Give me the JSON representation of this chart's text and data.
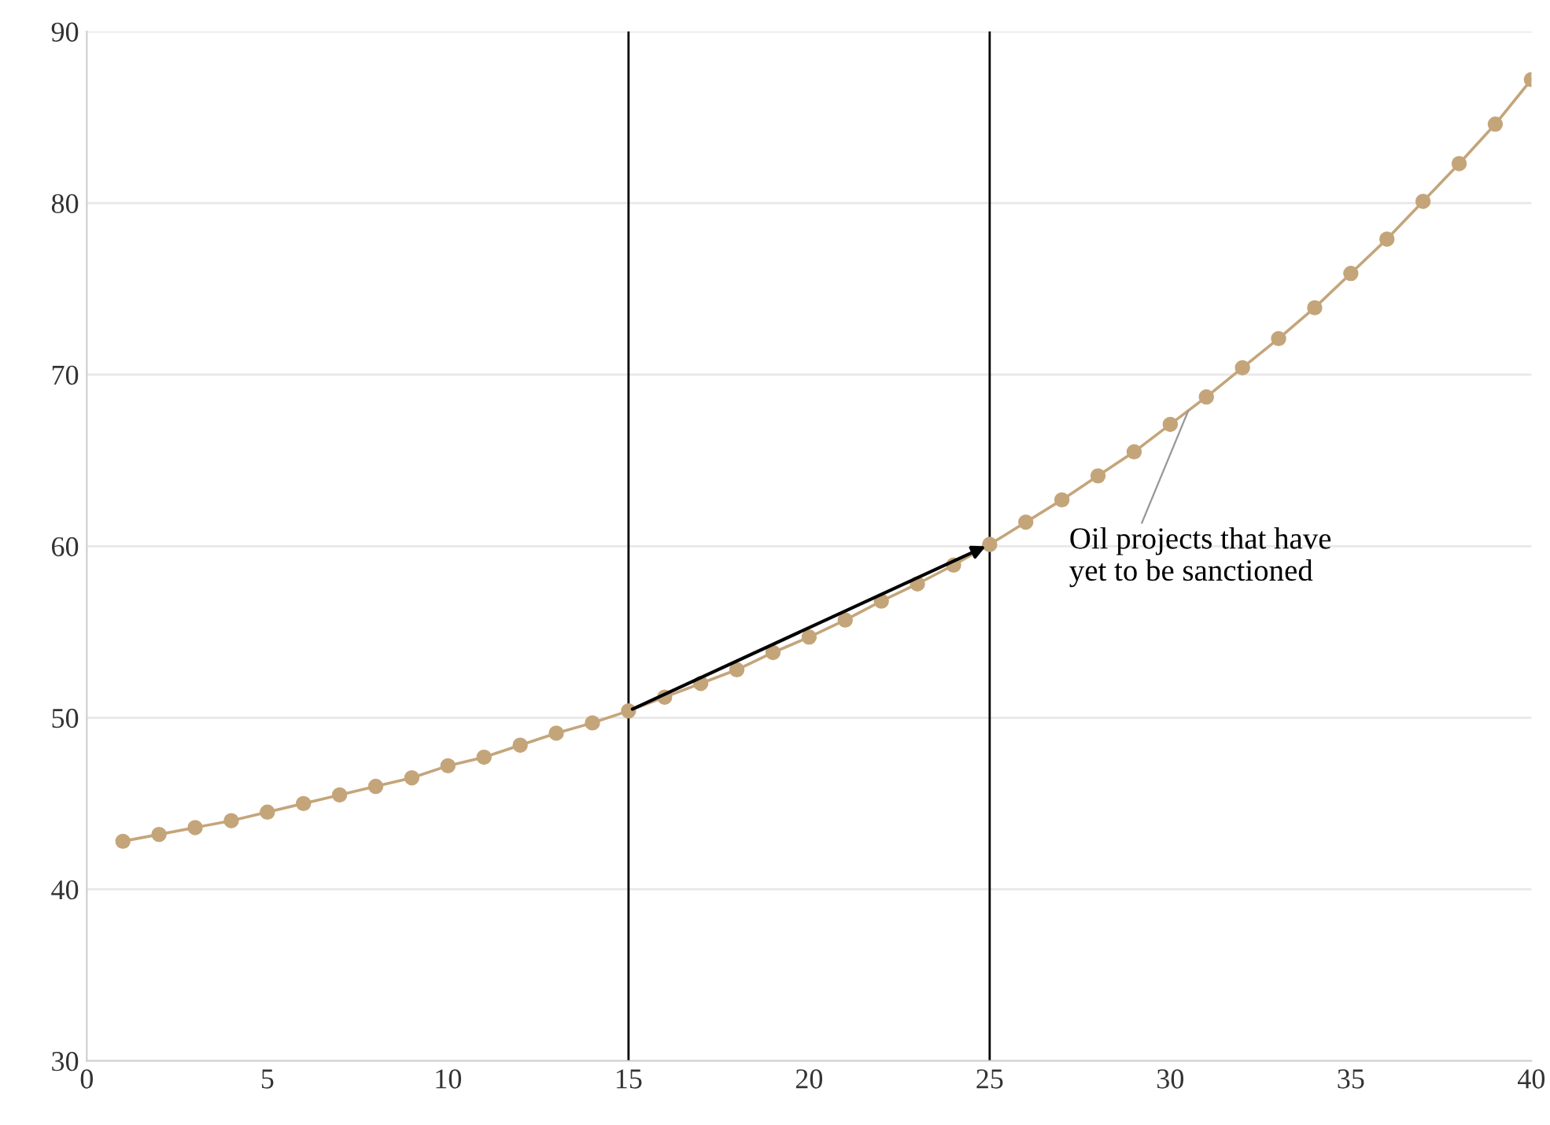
{
  "chart_data": {
    "type": "line",
    "x": [
      1,
      2,
      3,
      4,
      5,
      6,
      7,
      8,
      9,
      10,
      11,
      12,
      13,
      14,
      15,
      16,
      17,
      18,
      19,
      20,
      21,
      22,
      23,
      24,
      25,
      26,
      27,
      28,
      29,
      30,
      31,
      32,
      33,
      34,
      35,
      36,
      37,
      38,
      39,
      40
    ],
    "series": [
      {
        "color": "#c4a57a",
        "values": [
          42.8,
          43.2,
          43.6,
          44.0,
          44.5,
          45.0,
          45.5,
          46.0,
          46.5,
          47.2,
          47.7,
          48.4,
          49.1,
          49.7,
          50.4,
          51.2,
          52.0,
          52.8,
          53.8,
          54.7,
          55.7,
          56.8,
          57.8,
          58.9,
          60.1,
          61.4,
          62.7,
          64.1,
          65.5,
          67.1,
          68.7,
          70.4,
          72.1,
          73.9,
          75.9,
          77.9,
          80.1,
          82.3,
          84.6,
          87.2
        ]
      }
    ],
    "xlim": [
      0,
      40
    ],
    "xticks": [
      0,
      5,
      10,
      15,
      20,
      25,
      30,
      35,
      40
    ],
    "ylim": [
      30,
      90
    ],
    "yticks": [
      30,
      40,
      50,
      60,
      70,
      80,
      90
    ],
    "grid": "y",
    "marker": "circle",
    "line_style": "solid",
    "ref_lines": [
      {
        "axis": "x",
        "value": 15,
        "color": "#000000"
      },
      {
        "axis": "x",
        "value": 25,
        "color": "#000000"
      }
    ],
    "annotations": [
      {
        "text": "Oil projects that have\nyet to be sanctioned",
        "x": 30.5,
        "y": 67.9
      }
    ]
  }
}
